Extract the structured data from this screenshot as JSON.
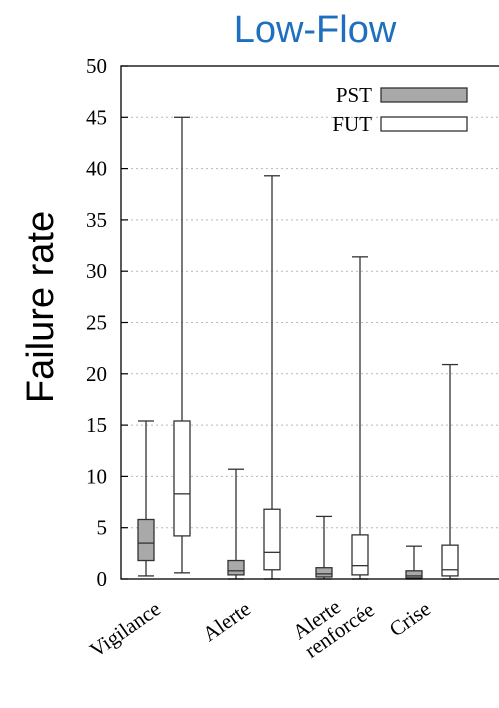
{
  "chart_data": {
    "type": "boxplot",
    "title": "Low-Flow",
    "ylabel": "Failure rate",
    "xlabel": "",
    "ylim": [
      0,
      50
    ],
    "yticks": [
      0,
      5,
      10,
      15,
      20,
      25,
      30,
      35,
      40,
      45,
      50
    ],
    "grid": true,
    "legend_position": "top-right",
    "categories": [
      {
        "lines": [
          "Vigilance"
        ]
      },
      {
        "lines": [
          "Alerte"
        ]
      },
      {
        "lines": [
          "Alerte",
          "renforcée"
        ]
      },
      {
        "lines": [
          "Crise"
        ]
      }
    ],
    "series": [
      {
        "name": "PST",
        "color": "#a9a9a9",
        "boxes": [
          {
            "min": 0.3,
            "q1": 1.8,
            "median": 3.5,
            "q3": 5.8,
            "max": 15.4
          },
          {
            "min": 0.0,
            "q1": 0.4,
            "median": 0.8,
            "q3": 1.8,
            "max": 10.7
          },
          {
            "min": 0.0,
            "q1": 0.2,
            "median": 0.5,
            "q3": 1.1,
            "max": 6.1
          },
          {
            "min": 0.0,
            "q1": 0.1,
            "median": 0.3,
            "q3": 0.8,
            "max": 3.2
          }
        ]
      },
      {
        "name": "FUT",
        "color": "#ffffff",
        "boxes": [
          {
            "min": 0.6,
            "q1": 4.2,
            "median": 8.3,
            "q3": 15.4,
            "max": 45.0
          },
          {
            "min": 0.0,
            "q1": 0.9,
            "median": 2.6,
            "q3": 6.8,
            "max": 39.3
          },
          {
            "min": 0.0,
            "q1": 0.4,
            "median": 1.3,
            "q3": 4.3,
            "max": 31.4
          },
          {
            "min": 0.0,
            "q1": 0.3,
            "median": 0.9,
            "q3": 3.3,
            "max": 20.9
          }
        ]
      }
    ]
  }
}
